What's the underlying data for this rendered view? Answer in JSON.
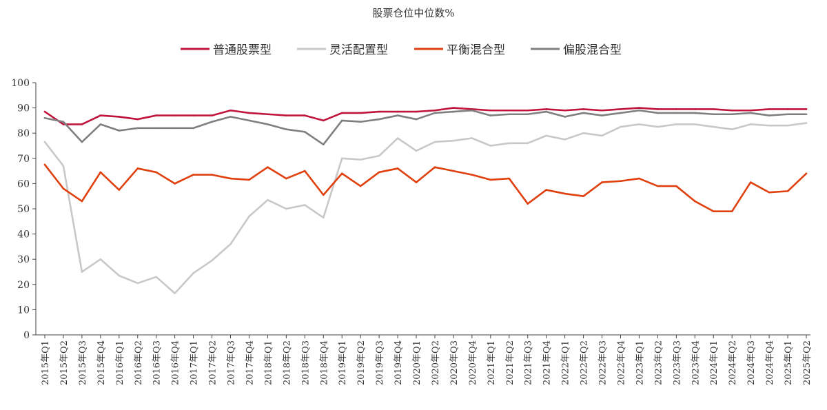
{
  "chart_data": {
    "type": "line",
    "title": "股票仓位中位数%",
    "xlabel": "",
    "ylabel": "",
    "ylim": [
      0,
      100
    ],
    "yticks": [
      0,
      10,
      20,
      30,
      40,
      50,
      60,
      70,
      80,
      90,
      100
    ],
    "grid": false,
    "legend_position": "top-center",
    "categories": [
      "2015年Q1",
      "2015年Q2",
      "2015年Q3",
      "2015年Q4",
      "2016年Q1",
      "2016年Q2",
      "2016年Q3",
      "2016年Q4",
      "2017年Q1",
      "2017年Q2",
      "2017年Q3",
      "2017年Q4",
      "2018年Q1",
      "2018年Q2",
      "2018年Q3",
      "2018年Q4",
      "2019年Q1",
      "2019年Q2",
      "2019年Q3",
      "2019年Q4",
      "2020年Q1",
      "2020年Q2",
      "2020年Q3",
      "2020年Q4",
      "2021年Q1",
      "2021年Q2",
      "2021年Q3",
      "2021年Q4",
      "2022年Q1",
      "2022年Q2",
      "2022年Q3",
      "2022年Q4",
      "2023年Q1",
      "2023年Q2",
      "2023年Q3",
      "2023年Q4",
      "2024年Q1",
      "2024年Q2",
      "2024年Q3",
      "2024年Q4",
      "2025年Q1",
      "2025年Q2"
    ],
    "series": [
      {
        "name": "普通股票型",
        "color": "#c0143c",
        "values": [
          88.5,
          83.5,
          83.5,
          87,
          86.5,
          85.5,
          87,
          87,
          87,
          87,
          89,
          88,
          87.5,
          87,
          87,
          85,
          88,
          88,
          88.5,
          88.5,
          88.5,
          89,
          90,
          89.5,
          89,
          89,
          89,
          89.5,
          89,
          89.5,
          89,
          89.5,
          90,
          89.5,
          89.5,
          89.5,
          89.5,
          89,
          89,
          89.5,
          89.5,
          89.5
        ]
      },
      {
        "name": "灵活配置型",
        "color": "#c8c8c8",
        "values": [
          76.5,
          67,
          25,
          30,
          23.5,
          20.5,
          23,
          16.5,
          24.5,
          29.5,
          36,
          47,
          53.5,
          50,
          51.5,
          46.5,
          70,
          69.5,
          71,
          78,
          73,
          76.5,
          77,
          78,
          75,
          76,
          76,
          79,
          77.5,
          80,
          79,
          82.5,
          83.5,
          82.5,
          83.5,
          83.5,
          82.5,
          81.5,
          83.5,
          83,
          83,
          84
        ]
      },
      {
        "name": "平衡混合型",
        "color": "#e0400e",
        "values": [
          67.5,
          58,
          53,
          64.5,
          57.5,
          66,
          64.5,
          60,
          63.5,
          63.5,
          62,
          61.5,
          66.5,
          62,
          65,
          55.5,
          64,
          59,
          64.5,
          66,
          60.5,
          66.5,
          65,
          63.5,
          61.5,
          62,
          52,
          57.5,
          56,
          55,
          60.5,
          61,
          62,
          59,
          59,
          53,
          49,
          49,
          60.5,
          56.5,
          57,
          64
        ]
      },
      {
        "name": "偏股混合型",
        "color": "#7f7f7f",
        "values": [
          86,
          84.5,
          76.5,
          83.5,
          81,
          82,
          82,
          82,
          82,
          84.5,
          86.5,
          85,
          83.5,
          81.5,
          80.5,
          75.5,
          85,
          84.5,
          85.5,
          87,
          85.5,
          88,
          88.5,
          89,
          87,
          87.5,
          87.5,
          88.5,
          86.5,
          88,
          87,
          88,
          89,
          88,
          88,
          88,
          87.5,
          87.5,
          88,
          87,
          87.5,
          87.5
        ]
      }
    ]
  }
}
